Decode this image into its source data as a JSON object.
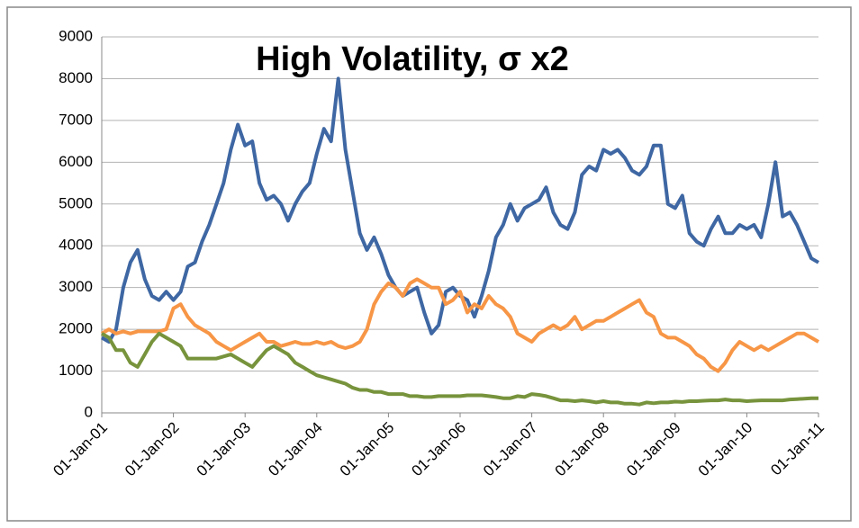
{
  "chart_data": {
    "type": "line",
    "title": "High Volatility, σ x2",
    "x": [
      2001,
      2001.1,
      2001.2,
      2001.3,
      2001.4,
      2001.5,
      2001.6,
      2001.7,
      2001.8,
      2001.9,
      2002,
      2002.1,
      2002.2,
      2002.3,
      2002.4,
      2002.5,
      2002.6,
      2002.7,
      2002.8,
      2002.9,
      2003,
      2003.1,
      2003.2,
      2003.3,
      2003.4,
      2003.5,
      2003.6,
      2003.7,
      2003.8,
      2003.9,
      2004,
      2004.1,
      2004.2,
      2004.3,
      2004.4,
      2004.5,
      2004.6,
      2004.7,
      2004.8,
      2004.9,
      2005,
      2005.1,
      2005.2,
      2005.3,
      2005.4,
      2005.5,
      2005.6,
      2005.7,
      2005.8,
      2005.9,
      2006,
      2006.1,
      2006.2,
      2006.3,
      2006.4,
      2006.5,
      2006.6,
      2006.7,
      2006.8,
      2006.9,
      2007,
      2007.1,
      2007.2,
      2007.3,
      2007.4,
      2007.5,
      2007.6,
      2007.7,
      2007.8,
      2007.9,
      2008,
      2008.1,
      2008.2,
      2008.3,
      2008.4,
      2008.5,
      2008.6,
      2008.7,
      2008.8,
      2008.9,
      2009,
      2009.1,
      2009.2,
      2009.3,
      2009.4,
      2009.5,
      2009.6,
      2009.7,
      2009.8,
      2009.9,
      2010,
      2010.1,
      2010.2,
      2010.3,
      2010.4,
      2010.5,
      2010.6,
      2010.7,
      2010.8,
      2010.9,
      2011
    ],
    "series": [
      {
        "color": "#3e67a3",
        "values": [
          1800,
          1700,
          2000,
          3000,
          3600,
          3900,
          3200,
          2800,
          2700,
          2900,
          2700,
          2900,
          3500,
          3600,
          4100,
          4500,
          5000,
          5500,
          6300,
          6900,
          6400,
          6500,
          5500,
          5100,
          5200,
          5000,
          4600,
          5000,
          5300,
          5500,
          6200,
          6800,
          6500,
          8000,
          6300,
          5300,
          4300,
          3900,
          4200,
          3800,
          3300,
          3000,
          2800,
          2900,
          3000,
          2400,
          1900,
          2100,
          2900,
          3000,
          2800,
          2700,
          2300,
          2800,
          3400,
          4200,
          4500,
          5000,
          4600,
          4900,
          5000,
          5100,
          5400,
          4800,
          4500,
          4400,
          4800,
          5700,
          5900,
          5800,
          6300,
          6200,
          6300,
          6100,
          5800,
          5700,
          5900,
          6400,
          6400,
          5000,
          4900,
          5200,
          4300,
          4100,
          4000,
          4400,
          4700,
          4300,
          4300,
          4500,
          4400,
          4500,
          4200,
          5000,
          6000,
          4700,
          4800,
          4500,
          4100,
          3700,
          3600
        ]
      },
      {
        "color": "#f79646",
        "values": [
          1900,
          2000,
          1900,
          1950,
          1900,
          1950,
          1950,
          1950,
          1950,
          2000,
          2500,
          2600,
          2300,
          2100,
          2000,
          1900,
          1700,
          1600,
          1500,
          1600,
          1700,
          1800,
          1900,
          1700,
          1700,
          1600,
          1650,
          1700,
          1650,
          1650,
          1700,
          1650,
          1700,
          1600,
          1550,
          1600,
          1700,
          2000,
          2600,
          2900,
          3100,
          3000,
          2800,
          3100,
          3200,
          3100,
          3000,
          3000,
          2600,
          2700,
          2900,
          2400,
          2600,
          2500,
          2800,
          2600,
          2500,
          2300,
          1900,
          1800,
          1700,
          1900,
          2000,
          2100,
          2000,
          2100,
          2300,
          2000,
          2100,
          2200,
          2200,
          2300,
          2400,
          2500,
          2600,
          2700,
          2400,
          2300,
          1900,
          1800,
          1800,
          1700,
          1600,
          1400,
          1300,
          1100,
          1000,
          1200,
          1500,
          1700,
          1600,
          1500,
          1600,
          1500,
          1600,
          1700,
          1800,
          1900,
          1900,
          1800,
          1700
        ]
      },
      {
        "color": "#77933c",
        "values": [
          1900,
          1800,
          1500,
          1500,
          1200,
          1100,
          1400,
          1700,
          1900,
          1800,
          1700,
          1600,
          1300,
          1300,
          1300,
          1300,
          1300,
          1350,
          1400,
          1300,
          1200,
          1100,
          1300,
          1500,
          1600,
          1500,
          1400,
          1200,
          1100,
          1000,
          900,
          850,
          800,
          750,
          700,
          600,
          550,
          550,
          500,
          500,
          450,
          450,
          450,
          400,
          400,
          380,
          380,
          400,
          400,
          400,
          400,
          420,
          420,
          420,
          400,
          380,
          350,
          350,
          400,
          380,
          450,
          430,
          400,
          350,
          300,
          300,
          280,
          300,
          280,
          250,
          280,
          250,
          250,
          220,
          220,
          200,
          250,
          230,
          250,
          250,
          270,
          260,
          280,
          280,
          290,
          300,
          300,
          320,
          300,
          300,
          280,
          290,
          300,
          300,
          300,
          300,
          320,
          330,
          340,
          350,
          350
        ]
      }
    ],
    "xlim": [
      2001,
      2011
    ],
    "xticks": [
      {
        "value": 2001,
        "label": "01-Jan-01"
      },
      {
        "value": 2002,
        "label": "01-Jan-02"
      },
      {
        "value": 2003,
        "label": "01-Jan-03"
      },
      {
        "value": 2004,
        "label": "01-Jan-04"
      },
      {
        "value": 2005,
        "label": "01-Jan-05"
      },
      {
        "value": 2006,
        "label": "01-Jan-06"
      },
      {
        "value": 2007,
        "label": "01-Jan-07"
      },
      {
        "value": 2008,
        "label": "01-Jan-08"
      },
      {
        "value": 2009,
        "label": "01-Jan-09"
      },
      {
        "value": 2010,
        "label": "01-Jan-10"
      },
      {
        "value": 2011,
        "label": "01-Jan-11"
      }
    ],
    "ylim": [
      0,
      9000
    ],
    "yticks": [
      0,
      1000,
      2000,
      3000,
      4000,
      5000,
      6000,
      7000,
      8000,
      9000
    ],
    "grid": true
  }
}
